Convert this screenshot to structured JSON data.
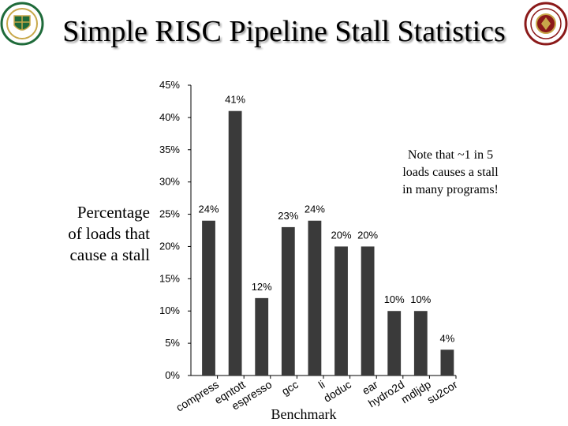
{
  "header": {
    "title": "Simple RISC Pipeline Stall Statistics"
  },
  "note": {
    "lines": [
      "Note that ~1 in 5",
      "loads causes a stall",
      "in many programs!"
    ]
  },
  "logos": [
    {
      "name": "university-seal-left",
      "colors": [
        "#1f6b3a",
        "#c8a84a"
      ]
    },
    {
      "name": "university-seal-right",
      "colors": [
        "#8b1a1a",
        "#c8a84a"
      ]
    }
  ],
  "chart_data": {
    "type": "bar",
    "categories": [
      "compress",
      "eqntott",
      "espresso",
      "gcc",
      "li",
      "doduc",
      "ear",
      "hydro2d",
      "mdljdp",
      "su2cor"
    ],
    "values": [
      24,
      41,
      12,
      23,
      24,
      20,
      20,
      10,
      10,
      4
    ],
    "value_labels": [
      "24%",
      "41%",
      "12%",
      "23%",
      "24%",
      "20%",
      "20%",
      "10%",
      "10%",
      "4%"
    ],
    "ytick_values": [
      0,
      5,
      10,
      15,
      20,
      25,
      30,
      35,
      40,
      45
    ],
    "ytick_labels": [
      "0%",
      "5%",
      "10%",
      "15%",
      "20%",
      "25%",
      "30%",
      "35%",
      "40%",
      "45%"
    ],
    "ylim": [
      0,
      45
    ],
    "ylabel_lines": [
      "Percentage",
      "of loads that",
      "cause a stall"
    ],
    "xlabel": "Benchmark",
    "grid": false,
    "bar_color": "#3a3a3a"
  }
}
